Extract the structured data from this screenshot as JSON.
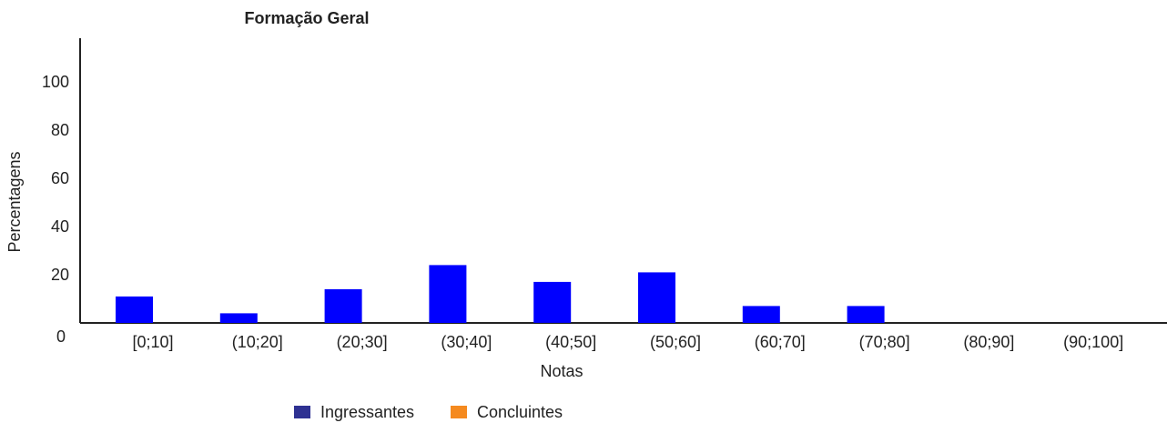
{
  "chart_data": {
    "type": "bar",
    "title": "Formação Geral",
    "xlabel": "Notas",
    "ylabel": "Percentagens",
    "categories": [
      "[0;10]",
      "(10;20]",
      "(20;30]",
      "(30;40]",
      "(40;50]",
      "(50;60]",
      "(60;70]",
      "(70;80]",
      "(80;90]",
      "(90;100]"
    ],
    "series": [
      {
        "name": "Ingressantes",
        "color": "#0000ff",
        "values": [
          11,
          4,
          14,
          24,
          17,
          21,
          7,
          7,
          0,
          0
        ]
      },
      {
        "name": "Concluintes",
        "color": "#f58a1f",
        "values": [
          0,
          0,
          0,
          0,
          0,
          0,
          0,
          0,
          0,
          0
        ]
      }
    ],
    "legend_colors": [
      "#2e3192",
      "#f58a1f"
    ],
    "yticks": [
      0,
      20,
      40,
      60,
      80,
      100
    ],
    "ylim": [
      0,
      100
    ],
    "grid": false,
    "legend_position": "bottom-center"
  }
}
